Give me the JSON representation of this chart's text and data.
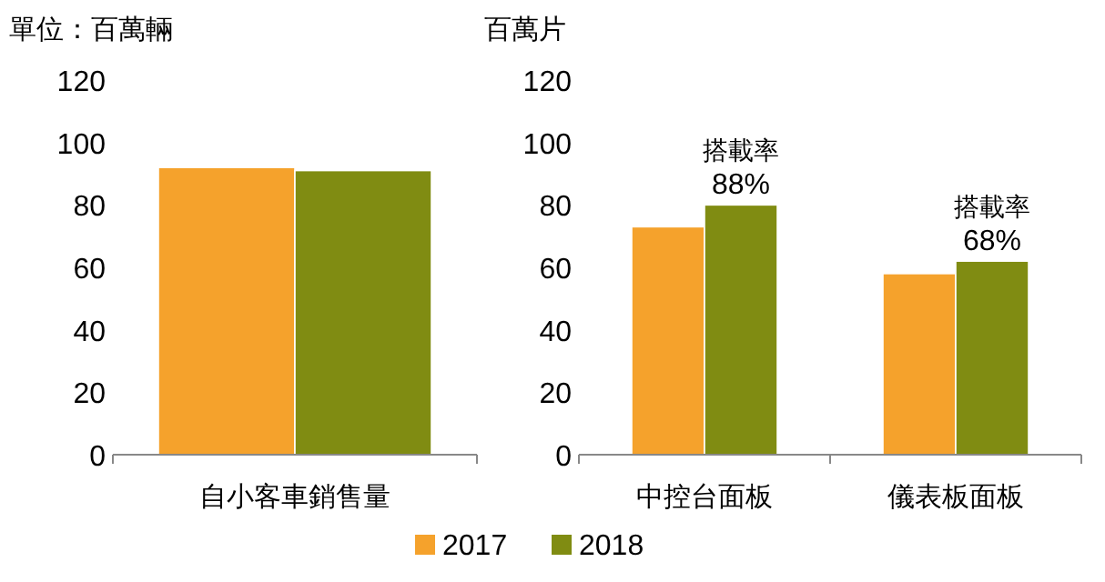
{
  "chart_data": [
    {
      "type": "bar",
      "ylabel": "單位：百萬輛",
      "categories": [
        "自小客車銷售量"
      ],
      "ylim": [
        0,
        120
      ],
      "yticks": [
        0,
        20,
        40,
        60,
        80,
        100,
        120
      ],
      "grid": false,
      "legend": "bottom",
      "series": [
        {
          "name": "2017",
          "color": "#f5a22c",
          "values": [
            92
          ]
        },
        {
          "name": "2018",
          "color": "#808c12",
          "values": [
            91
          ]
        }
      ]
    },
    {
      "type": "bar",
      "ylabel": "百萬片",
      "categories": [
        "中控台面板",
        "儀表板面板"
      ],
      "ylim": [
        0,
        120
      ],
      "yticks": [
        0,
        20,
        40,
        60,
        80,
        100,
        120
      ],
      "grid": false,
      "series": [
        {
          "color": "#f5a22c",
          "values": [
            73,
            58
          ]
        },
        {
          "color": "#808c12",
          "values": [
            80,
            62
          ]
        }
      ],
      "annotations": [
        {
          "text": "搭載率\n88%",
          "x": "中控台面板",
          "y": 80
        },
        {
          "text": "搭載率\n68%",
          "x": "儀表板面板",
          "y": 62
        }
      ]
    }
  ]
}
